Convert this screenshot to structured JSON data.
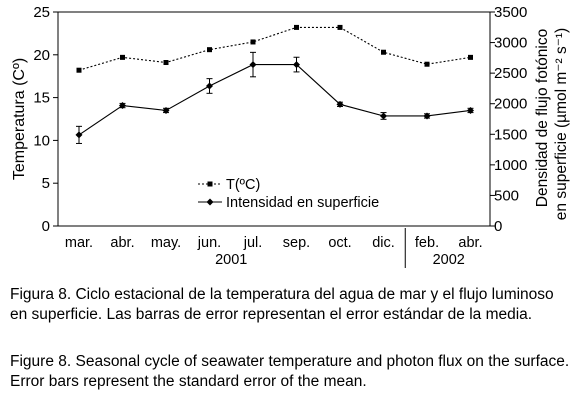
{
  "chart_data": {
    "type": "line",
    "categories": [
      "mar.",
      "abr.",
      "may.",
      "jun.",
      "jul.",
      "sep.",
      "oct.",
      "dic.",
      "feb.",
      "abr."
    ],
    "year_groups": [
      {
        "label": "2001",
        "from": 0,
        "to": 7
      },
      {
        "label": "2002",
        "from": 8,
        "to": 9
      }
    ],
    "left_axis": {
      "label": "Temperatura (Cº)",
      "ylim": [
        0,
        25
      ],
      "ticks": [
        0,
        5,
        10,
        15,
        20,
        25
      ]
    },
    "right_axis": {
      "label_line1": "Densidad de flujo fotónico",
      "label_line2": "en superficie (µmol m⁻² s⁻¹)",
      "ylim": [
        0,
        3500
      ],
      "ticks": [
        0,
        500,
        1000,
        1500,
        2000,
        2500,
        3000,
        3500
      ]
    },
    "series": [
      {
        "name": "T(ºC)",
        "axis": "left",
        "style": "dotted",
        "marker": "square",
        "values": [
          18.2,
          19.7,
          19.1,
          20.6,
          21.5,
          23.2,
          23.2,
          20.3,
          18.9,
          19.7
        ]
      },
      {
        "name": "Intensidad en superficie",
        "axis": "right",
        "style": "solid",
        "marker": "diamond",
        "values": [
          1490,
          1970,
          1890,
          2290,
          2640,
          2640,
          1990,
          1800,
          1800,
          1890
        ],
        "errors": [
          140,
          35,
          35,
          120,
          200,
          120,
          35,
          55,
          35,
          35
        ]
      }
    ],
    "legend_position": "lower-center"
  },
  "caption_es": {
    "label": "Figura 8",
    "text": ". Ciclo estacional de la temperatura del agua de mar y el flujo luminoso en superficie. Las barras de error representan el error estándar de la media."
  },
  "caption_en": {
    "label": "Figure 8",
    "text": ". Seasonal cycle of seawater temperature and photon flux on the surface. Error bars represent the standard error of the mean."
  }
}
